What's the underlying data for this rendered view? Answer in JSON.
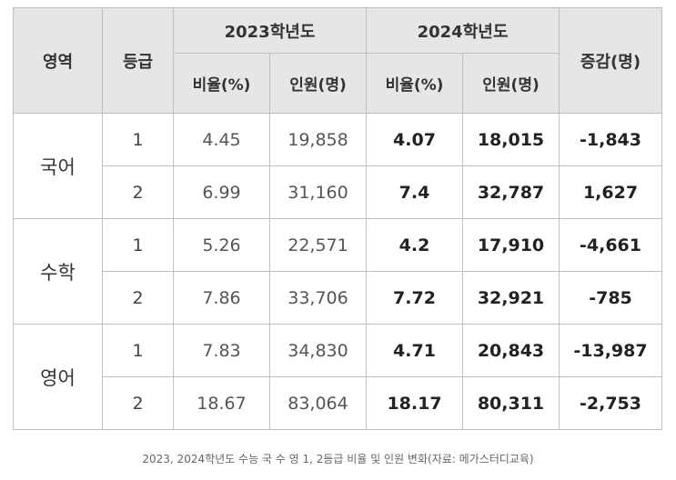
{
  "headers": {
    "area": "영역",
    "grade": "등급",
    "year2023": "2023학년도",
    "year2024": "2024학년도",
    "change": "증감(명)",
    "ratio": "비율(%)",
    "people": "인원(명)"
  },
  "rows": [
    {
      "area": "국어",
      "grade": "1",
      "r23": "4.45",
      "p23": "19,858",
      "r24": "4.07",
      "p24": "18,015",
      "diff": "-1,843"
    },
    {
      "area": "",
      "grade": "2",
      "r23": "6.99",
      "p23": "31,160",
      "r24": "7.4",
      "p24": "32,787",
      "diff": "1,627"
    },
    {
      "area": "수학",
      "grade": "1",
      "r23": "5.26",
      "p23": "22,571",
      "r24": "4.2",
      "p24": "17,910",
      "diff": "-4,661"
    },
    {
      "area": "",
      "grade": "2",
      "r23": "7.86",
      "p23": "33,706",
      "r24": "7.72",
      "p24": "32,921",
      "diff": "-785"
    },
    {
      "area": "영어",
      "grade": "1",
      "r23": "7.83",
      "p23": "34,830",
      "r24": "4.71",
      "p24": "20,843",
      "diff": "-13,987"
    },
    {
      "area": "",
      "grade": "2",
      "r23": "18.67",
      "p23": "83,064",
      "r24": "18.17",
      "p24": "80,311",
      "diff": "-2,753"
    }
  ],
  "caption": "2023, 2024학년도 수능 국 수 영 1, 2등급 비율 및 인원 변화(자료: 메가스터디교육)"
}
